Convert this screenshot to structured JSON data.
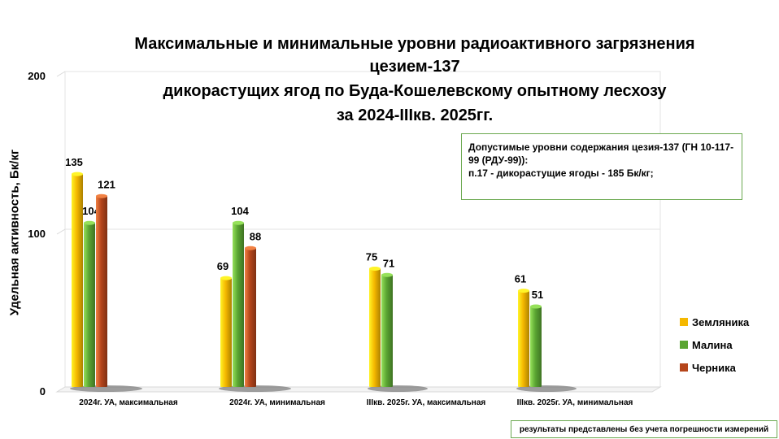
{
  "chart_data": {
    "type": "bar",
    "title_lines": [
      "Максимальные и минимальные уровни радиоактивного загрязнения",
      "цезием-137",
      "дикорастущих ягод по Буда-Кошелевскому опытному лесхозу",
      "за 2024-IIIкв. 2025гг."
    ],
    "ylabel": "Удельная активность, Бк/кг",
    "xlabel": "",
    "ylim": [
      0,
      200
    ],
    "yticks": [
      0,
      100,
      200
    ],
    "categories": [
      "2024г. УА, максимальная",
      "2024г. УА, минимальная",
      "IIIкв. 2025г. УА, максимальная",
      "IIIкв. 2025г. УА, минимальная"
    ],
    "series": [
      {
        "name": "Земляника",
        "color": "#f5b800",
        "values": [
          135,
          69,
          75,
          61
        ]
      },
      {
        "name": "Малина",
        "color": "#5aa532",
        "values": [
          104,
          104,
          71,
          51
        ]
      },
      {
        "name": "Черника",
        "color": "#b5451b",
        "values": [
          121,
          88,
          null,
          null
        ]
      }
    ],
    "legend_position": "right",
    "grid": true,
    "annotation": {
      "line1": "Допустимые уровни содержания цезия-137 (ГН 10-117-99 (РДУ-99)):",
      "line2": "п.17 - дикорастущие ягоды - 185 Бк/кг;"
    }
  },
  "footer_note": "результаты представлены без учета погрешности измерений"
}
